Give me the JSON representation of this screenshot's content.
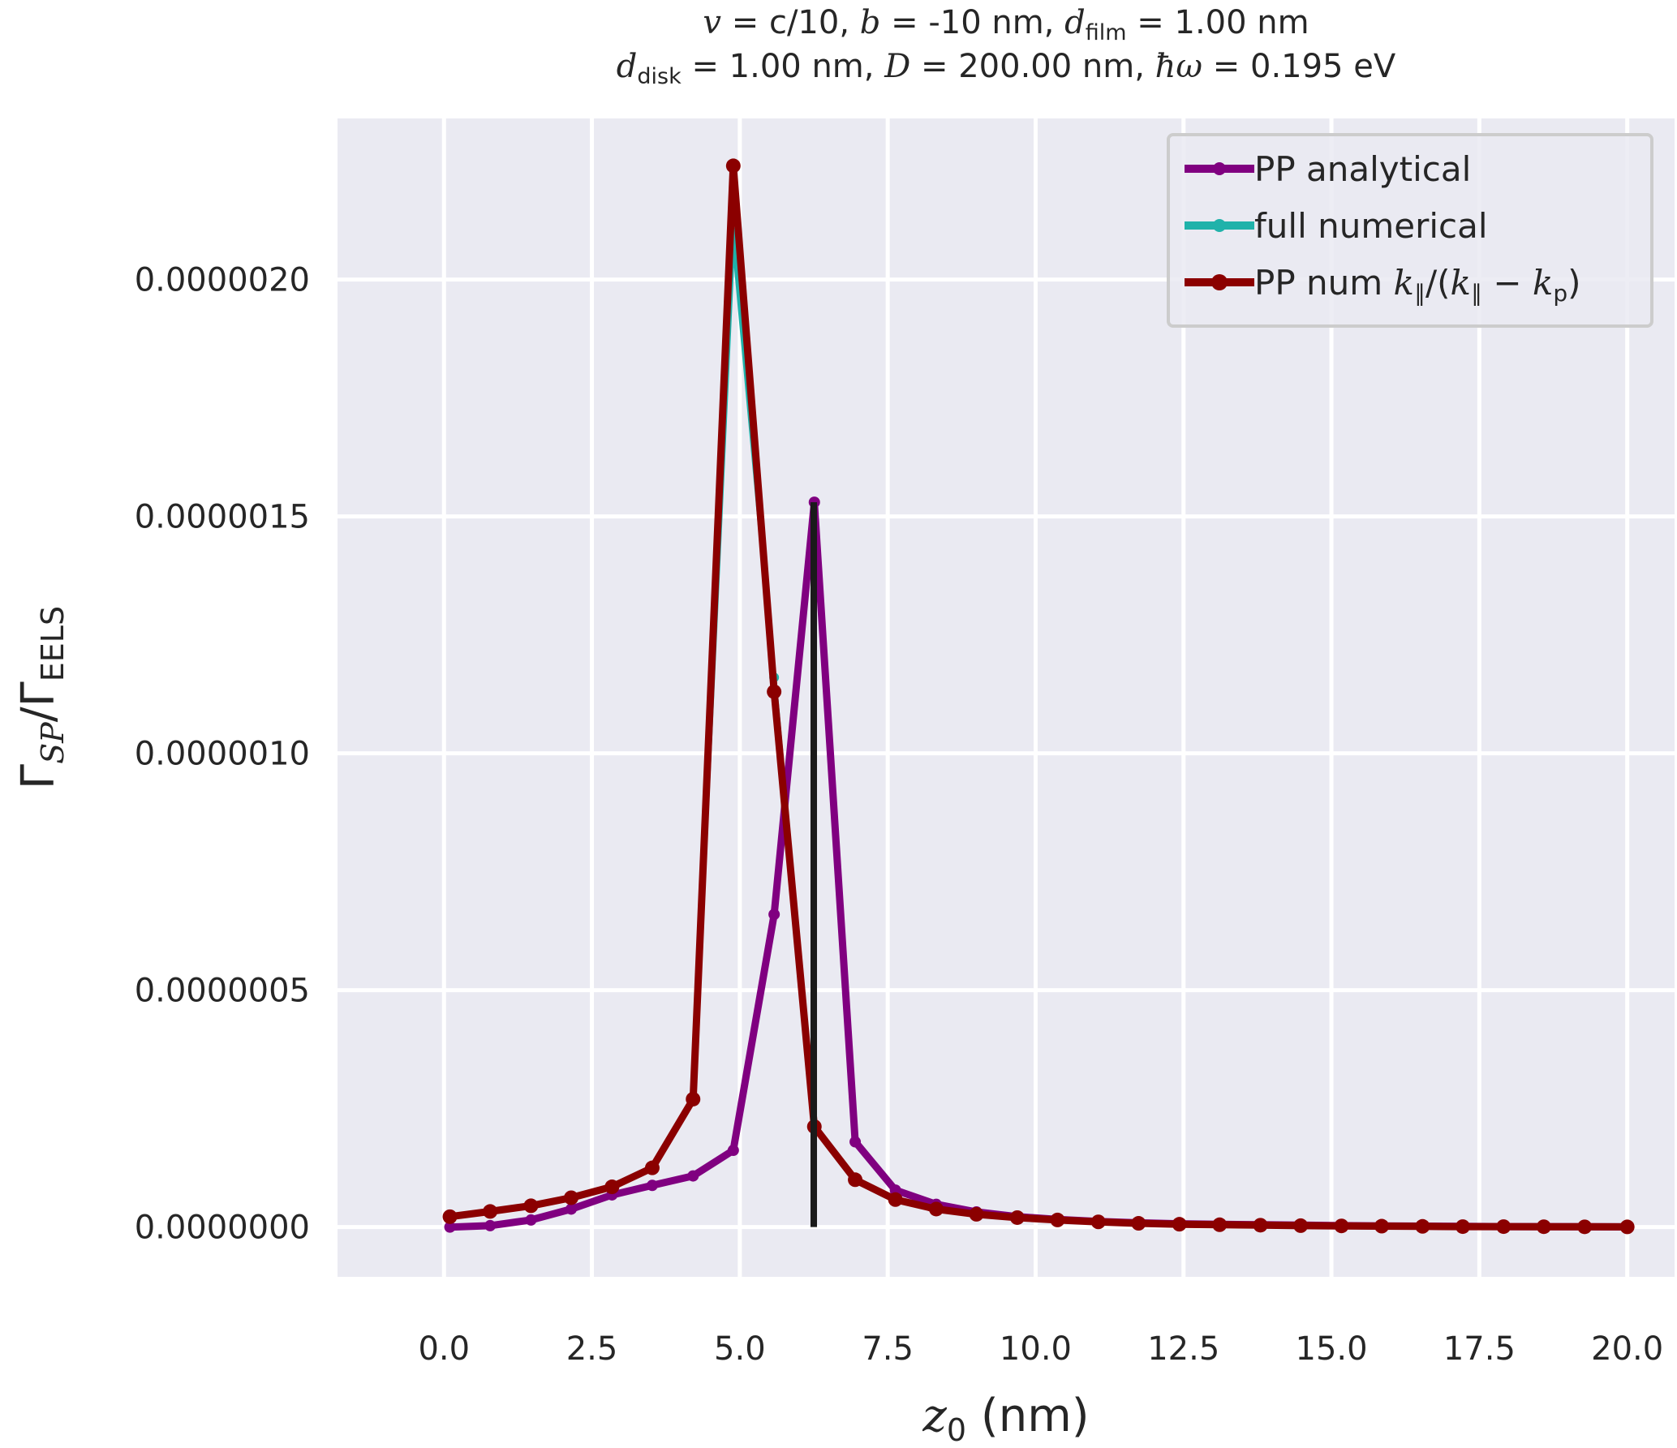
{
  "chart_data": {
    "type": "line",
    "title_line1": {
      "v_sym": "v",
      "v_text": " = c/10, ",
      "b_sym": "b",
      "b_text": " = -10 nm, ",
      "d_sym": "d",
      "d_sub": "film",
      "d_text": " = 1.00 nm"
    },
    "title_line2": {
      "d_sym": "d",
      "d_sub": "disk",
      "d_text": " = 1.00 nm, ",
      "D_sym": "D",
      "D_text": " = 200.00 nm, ",
      "hw_sym": "ħω",
      "hw_text": " = 0.195 eV"
    },
    "xlabel": {
      "sym": "z",
      "sub": "0",
      "unit": " (nm)"
    },
    "ylabel": {
      "g1": "Γ",
      "sub1": "SP",
      "slash": "/Γ",
      "sub2": "EELS"
    },
    "xlim": [
      -1.8,
      20.8
    ],
    "ylim": [
      -1.05e-07,
      2.34e-06
    ],
    "xticks": [
      0.0,
      2.5,
      5.0,
      7.5,
      10.0,
      12.5,
      15.0,
      17.5,
      20.0
    ],
    "xtick_labels": [
      "0.0",
      "2.5",
      "5.0",
      "7.5",
      "10.0",
      "12.5",
      "15.0",
      "17.5",
      "20.0"
    ],
    "yticks": [
      0.0,
      5e-07,
      1e-06,
      1.5e-06,
      2e-06
    ],
    "ytick_labels": [
      "0.0000000",
      "0.0000005",
      "0.0000010",
      "0.0000015",
      "0.0000020"
    ],
    "grid": true,
    "legend_position": "top-right",
    "vline_x": 6.25,
    "series": [
      {
        "name": "PP analytical",
        "color": "#800080",
        "x": [
          0.1,
          0.78,
          1.47,
          2.15,
          2.84,
          3.52,
          4.21,
          4.89,
          5.58,
          6.26,
          6.95,
          7.63,
          8.32,
          9.0,
          9.69,
          10.37,
          11.06,
          11.74,
          12.43,
          13.11,
          13.8,
          14.48,
          15.17,
          15.85,
          16.54,
          17.22,
          17.91,
          18.59,
          19.28,
          20.0
        ],
        "y": [
          0.0,
          3e-09,
          1.5e-08,
          3.8e-08,
          6.8e-08,
          8.8e-08,
          1.08e-07,
          1.62e-07,
          6.6e-07,
          1.53e-06,
          1.8e-07,
          7.8e-08,
          4.8e-08,
          3.2e-08,
          2.2e-08,
          1.6e-08,
          1.2e-08,
          9e-09,
          7e-09,
          6e-09,
          5e-09,
          4e-09,
          3e-09,
          2.5e-09,
          2e-09,
          1.5e-09,
          1e-09,
          1e-09,
          8e-10,
          5e-10
        ]
      },
      {
        "name": "full numerical",
        "color": "#20B2AA",
        "x": [
          0.1,
          0.78,
          1.47,
          2.15,
          2.84,
          3.52,
          4.21,
          4.89,
          5.58,
          6.26,
          6.95,
          7.63,
          8.32,
          9.0,
          9.69,
          10.37,
          11.06,
          11.74,
          12.43,
          13.11,
          13.8,
          14.48,
          15.17,
          15.85,
          16.54,
          17.22,
          17.91,
          18.59,
          19.28,
          20.0
        ],
        "y": [
          2.2e-08,
          3.3e-08,
          4.5e-08,
          6.2e-08,
          8.5e-08,
          1.25e-07,
          2.7e-07,
          2.1e-06,
          1.16e-06,
          2.12e-07,
          1e-07,
          5.8e-08,
          3.8e-08,
          2.7e-08,
          2e-08,
          1.5e-08,
          1.1e-08,
          8e-09,
          6e-09,
          5e-09,
          4e-09,
          3e-09,
          2.5e-09,
          2e-09,
          1.5e-09,
          1e-09,
          1e-09,
          8e-10,
          6e-10,
          5e-10
        ]
      },
      {
        "name": "PP num",
        "color": "#8B0000",
        "x": [
          0.1,
          0.78,
          1.47,
          2.15,
          2.84,
          3.52,
          4.21,
          4.89,
          5.58,
          6.26,
          6.95,
          7.63,
          8.32,
          9.0,
          9.69,
          10.37,
          11.06,
          11.74,
          12.43,
          13.11,
          13.8,
          14.48,
          15.17,
          15.85,
          16.54,
          17.22,
          17.91,
          18.59,
          19.28,
          20.0
        ],
        "y": [
          2.2e-08,
          3.3e-08,
          4.5e-08,
          6.2e-08,
          8.5e-08,
          1.25e-07,
          2.7e-07,
          2.24e-06,
          1.13e-06,
          2.12e-07,
          1e-07,
          5.8e-08,
          3.8e-08,
          2.7e-08,
          2e-08,
          1.5e-08,
          1.1e-08,
          8e-09,
          6e-09,
          5e-09,
          4e-09,
          3e-09,
          2.5e-09,
          2e-09,
          1.5e-09,
          1e-09,
          1e-09,
          8e-10,
          6e-10,
          5e-10
        ]
      }
    ],
    "legend_entry3_math": {
      "k": "k",
      "par": "∥",
      "mid": "/(",
      "k2": "k",
      "par2": "∥",
      "minus": " − ",
      "k3": "k",
      "p": "p",
      "close": ")"
    }
  }
}
